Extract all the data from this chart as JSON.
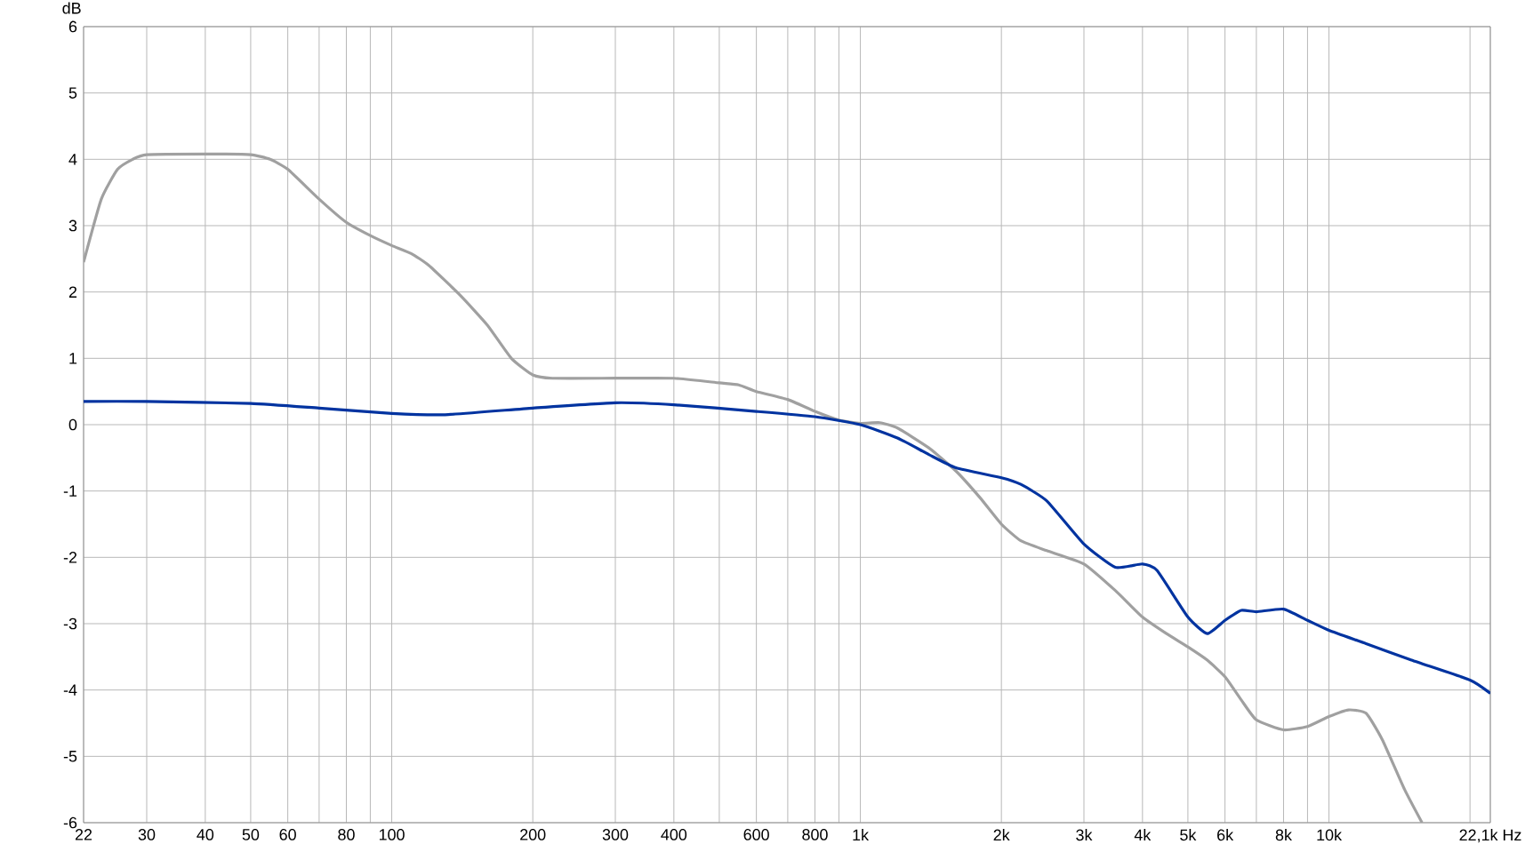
{
  "chart_data": {
    "type": "line",
    "ylabel": "dB",
    "log": "x",
    "grid": true,
    "xlim": [
      22,
      22100
    ],
    "ylim": [
      -6,
      6
    ],
    "xticks": [
      22,
      30,
      40,
      50,
      60,
      {
        "value": 70,
        "label": null
      },
      80,
      {
        "value": 90,
        "label": null
      },
      100,
      200,
      300,
      400,
      {
        "value": 500,
        "label": null
      },
      600,
      {
        "value": 700,
        "label": null
      },
      800,
      {
        "value": 900,
        "label": null
      },
      {
        "value": 1000,
        "label": "1k"
      },
      {
        "value": 2000,
        "label": "2k"
      },
      {
        "value": 3000,
        "label": "3k"
      },
      {
        "value": 4000,
        "label": "4k"
      },
      {
        "value": 5000,
        "label": "5k"
      },
      {
        "value": 6000,
        "label": "6k"
      },
      {
        "value": 7000,
        "label": null
      },
      {
        "value": 8000,
        "label": "8k"
      },
      {
        "value": 9000,
        "label": null
      },
      {
        "value": 10000,
        "label": "10k"
      },
      {
        "value": 20000,
        "label": null
      },
      {
        "value": 22100,
        "label": "22,1k Hz"
      }
    ],
    "yticks": [
      -6,
      -5,
      -4,
      -3,
      -2,
      -1,
      0,
      1,
      2,
      3,
      4,
      5,
      6
    ],
    "series": [
      {
        "color": "#a0a0a0",
        "x": [
          22,
          24,
          26,
          28,
          30,
          40,
          50,
          55,
          60,
          70,
          80,
          90,
          100,
          110,
          120,
          140,
          160,
          180,
          200,
          220,
          300,
          400,
          500,
          550,
          600,
          700,
          800,
          900,
          1000,
          1100,
          1200,
          1400,
          1600,
          1800,
          2000,
          2200,
          2500,
          3000,
          3500,
          4000,
          4500,
          5000,
          5500,
          6000,
          6500,
          7000,
          8000,
          9000,
          10000,
          11000,
          12000,
          13000,
          14500,
          15800
        ],
        "values": [
          2.45,
          3.4,
          3.85,
          4.0,
          4.07,
          4.08,
          4.07,
          4.0,
          3.85,
          3.4,
          3.05,
          2.85,
          2.7,
          2.58,
          2.4,
          1.95,
          1.5,
          1.0,
          0.75,
          0.7,
          0.7,
          0.7,
          0.63,
          0.6,
          0.5,
          0.38,
          0.2,
          0.07,
          0.02,
          0.03,
          -0.05,
          -0.35,
          -0.7,
          -1.1,
          -1.5,
          -1.75,
          -1.9,
          -2.1,
          -2.5,
          -2.9,
          -3.15,
          -3.35,
          -3.55,
          -3.8,
          -4.15,
          -4.45,
          -4.6,
          -4.55,
          -4.4,
          -4.3,
          -4.35,
          -4.75,
          -5.5,
          -6.0
        ]
      },
      {
        "color": "#0033a0",
        "x": [
          22,
          30,
          50,
          70,
          100,
          130,
          200,
          300,
          400,
          600,
          800,
          1000,
          1200,
          1400,
          1600,
          2000,
          2200,
          2500,
          3000,
          3500,
          4000,
          4300,
          5000,
          5500,
          6000,
          6500,
          7000,
          8000,
          9000,
          10000,
          12000,
          15000,
          20000,
          22100
        ],
        "values": [
          0.35,
          0.35,
          0.32,
          0.25,
          0.17,
          0.15,
          0.25,
          0.33,
          0.3,
          0.2,
          0.12,
          0.0,
          -0.2,
          -0.45,
          -0.65,
          -0.8,
          -0.9,
          -1.15,
          -1.8,
          -2.15,
          -2.1,
          -2.2,
          -2.9,
          -3.15,
          -2.95,
          -2.8,
          -2.82,
          -2.78,
          -2.95,
          -3.1,
          -3.3,
          -3.55,
          -3.85,
          -4.05
        ]
      }
    ]
  }
}
